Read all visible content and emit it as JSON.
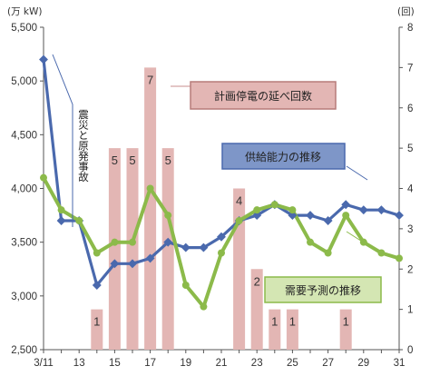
{
  "chart_data": {
    "type": "bar",
    "y_left_label": "(万 kW)",
    "y_right_label": "(回)",
    "y_left_ticks": [
      "5,500",
      "5,000",
      "4,500",
      "4,000",
      "3,500",
      "3,000",
      "2,500"
    ],
    "y_left_lim": [
      2500,
      5500
    ],
    "y_right_ticks": [
      "8",
      "7",
      "6",
      "5",
      "4",
      "3",
      "2",
      "1",
      "0"
    ],
    "y_right_lim": [
      0,
      8
    ],
    "x_tick_labels": [
      "3/11",
      "13",
      "15",
      "17",
      "19",
      "21",
      "23",
      "25",
      "27",
      "29",
      "31"
    ],
    "x_range": [
      11,
      31
    ],
    "bars": {
      "name": "計画停電の延べ回数",
      "x": [
        14,
        15,
        16,
        17,
        18,
        22,
        23,
        24,
        25,
        28
      ],
      "values": [
        1,
        5,
        5,
        7,
        5,
        4,
        2,
        1,
        1,
        1
      ],
      "labels": [
        "1",
        "5",
        "5",
        "7",
        "5",
        "4",
        "2",
        "1",
        "1",
        "1"
      ],
      "color": "#e3b6b4"
    },
    "series": [
      {
        "name": "供給能力の推移",
        "color": "#4a69ad",
        "x": [
          11,
          12,
          13,
          14,
          15,
          16,
          17,
          18,
          19,
          20,
          21,
          22,
          23,
          24,
          25,
          26,
          27,
          28,
          29,
          30,
          31
        ],
        "values": [
          5200,
          3700,
          3700,
          3100,
          3300,
          3300,
          3350,
          3500,
          3450,
          3450,
          3550,
          3700,
          3750,
          3850,
          3750,
          3750,
          3700,
          3850,
          3800,
          3800,
          3750
        ]
      },
      {
        "name": "需要予測の推移",
        "color": "#8cba4a",
        "x": [
          11,
          12,
          13,
          14,
          15,
          16,
          17,
          18,
          19,
          20,
          21,
          22,
          23,
          24,
          25,
          26,
          27,
          28,
          29,
          30,
          31
        ],
        "values": [
          4100,
          3800,
          3700,
          3400,
          3500,
          3500,
          4000,
          3750,
          3100,
          2900,
          3400,
          3700,
          3800,
          3850,
          3800,
          3500,
          3400,
          3750,
          3500,
          3400,
          3350
        ]
      }
    ],
    "annotations": {
      "vertical_text": "震災と原発事故"
    }
  }
}
